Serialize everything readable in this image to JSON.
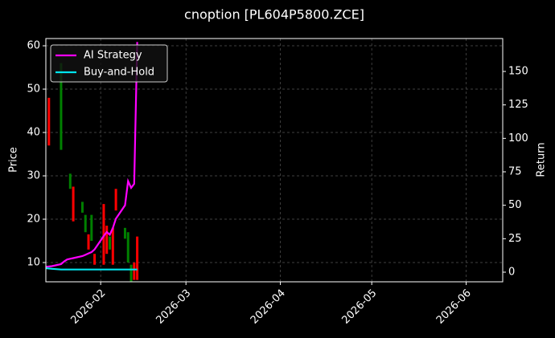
{
  "chart_data": {
    "type": "candlestick",
    "title": "cnoption [PL604P5800.ZCE]",
    "ylabel": "Price",
    "y2label": "Return",
    "x": [
      "2026-01-15",
      "2026-01-19",
      "2026-01-22",
      "2026-01-23",
      "2026-01-26",
      "2026-01-27",
      "2026-01-28",
      "2026-01-29",
      "2026-01-30",
      "2026-02-02",
      "2026-02-03",
      "2026-02-04",
      "2026-02-05",
      "2026-02-06",
      "2026-02-09",
      "2026-02-10",
      "2026-02-11",
      "2026-02-12",
      "2026-02-13"
    ],
    "open": [
      48,
      36,
      27,
      27.5,
      21.5,
      17,
      16.5,
      15,
      12,
      23.5,
      18.5,
      13,
      18,
      27,
      15.5,
      10,
      5.6,
      10,
      16
    ],
    "close": [
      37,
      56,
      30.5,
      19.5,
      24,
      21,
      13,
      21,
      9.5,
      9.5,
      12,
      16,
      9.5,
      22,
      18,
      17,
      9.5,
      6,
      6
    ],
    "up_color": "#008000",
    "down_color": "#ff0000",
    "series": [
      {
        "name": "AI Strategy",
        "color": "#ff00ff",
        "axis": "y2",
        "x": [
          "2026-01-14",
          "2026-01-16",
          "2026-01-19",
          "2026-01-20",
          "2026-01-21",
          "2026-01-22",
          "2026-01-23",
          "2026-01-26",
          "2026-01-27",
          "2026-01-28",
          "2026-01-29",
          "2026-01-30",
          "2026-02-02",
          "2026-02-03",
          "2026-02-04",
          "2026-02-05",
          "2026-02-06",
          "2026-02-09",
          "2026-02-10",
          "2026-02-11",
          "2026-02-12",
          "2026-02-13"
        ],
        "values": [
          4,
          4.5,
          6,
          8,
          9.5,
          10,
          10.5,
          12,
          13,
          14,
          15,
          17,
          27,
          30,
          28,
          33,
          40,
          50,
          68,
          63,
          66,
          172
        ]
      },
      {
        "name": "Buy-and-Hold",
        "color": "#00e5ee",
        "axis": "y2",
        "x": [
          "2026-01-14",
          "2026-01-16",
          "2026-01-19",
          "2026-01-22",
          "2026-01-26",
          "2026-01-30",
          "2026-02-04",
          "2026-02-09",
          "2026-02-13"
        ],
        "values": [
          3,
          2.5,
          2,
          2,
          2,
          2,
          2,
          2,
          2
        ]
      }
    ],
    "xlim": [
      "2026-01-14",
      "2026-06-13"
    ],
    "xticks": [
      {
        "value": "2026-02-01",
        "label": "2026-02"
      },
      {
        "value": "2026-03-01",
        "label": "2026-03"
      },
      {
        "value": "2026-04-01",
        "label": "2026-04"
      },
      {
        "value": "2026-05-01",
        "label": "2026-05"
      },
      {
        "value": "2026-06-01",
        "label": "2026-06"
      }
    ],
    "ylim": [
      5.56,
      61.67
    ],
    "yticks": [
      10,
      20,
      30,
      40,
      50,
      60
    ],
    "y2lim": [
      -7.2,
      174.6
    ],
    "y2ticks": [
      0,
      25,
      50,
      75,
      100,
      125,
      150
    ],
    "grid": true,
    "legend": "upper left"
  }
}
